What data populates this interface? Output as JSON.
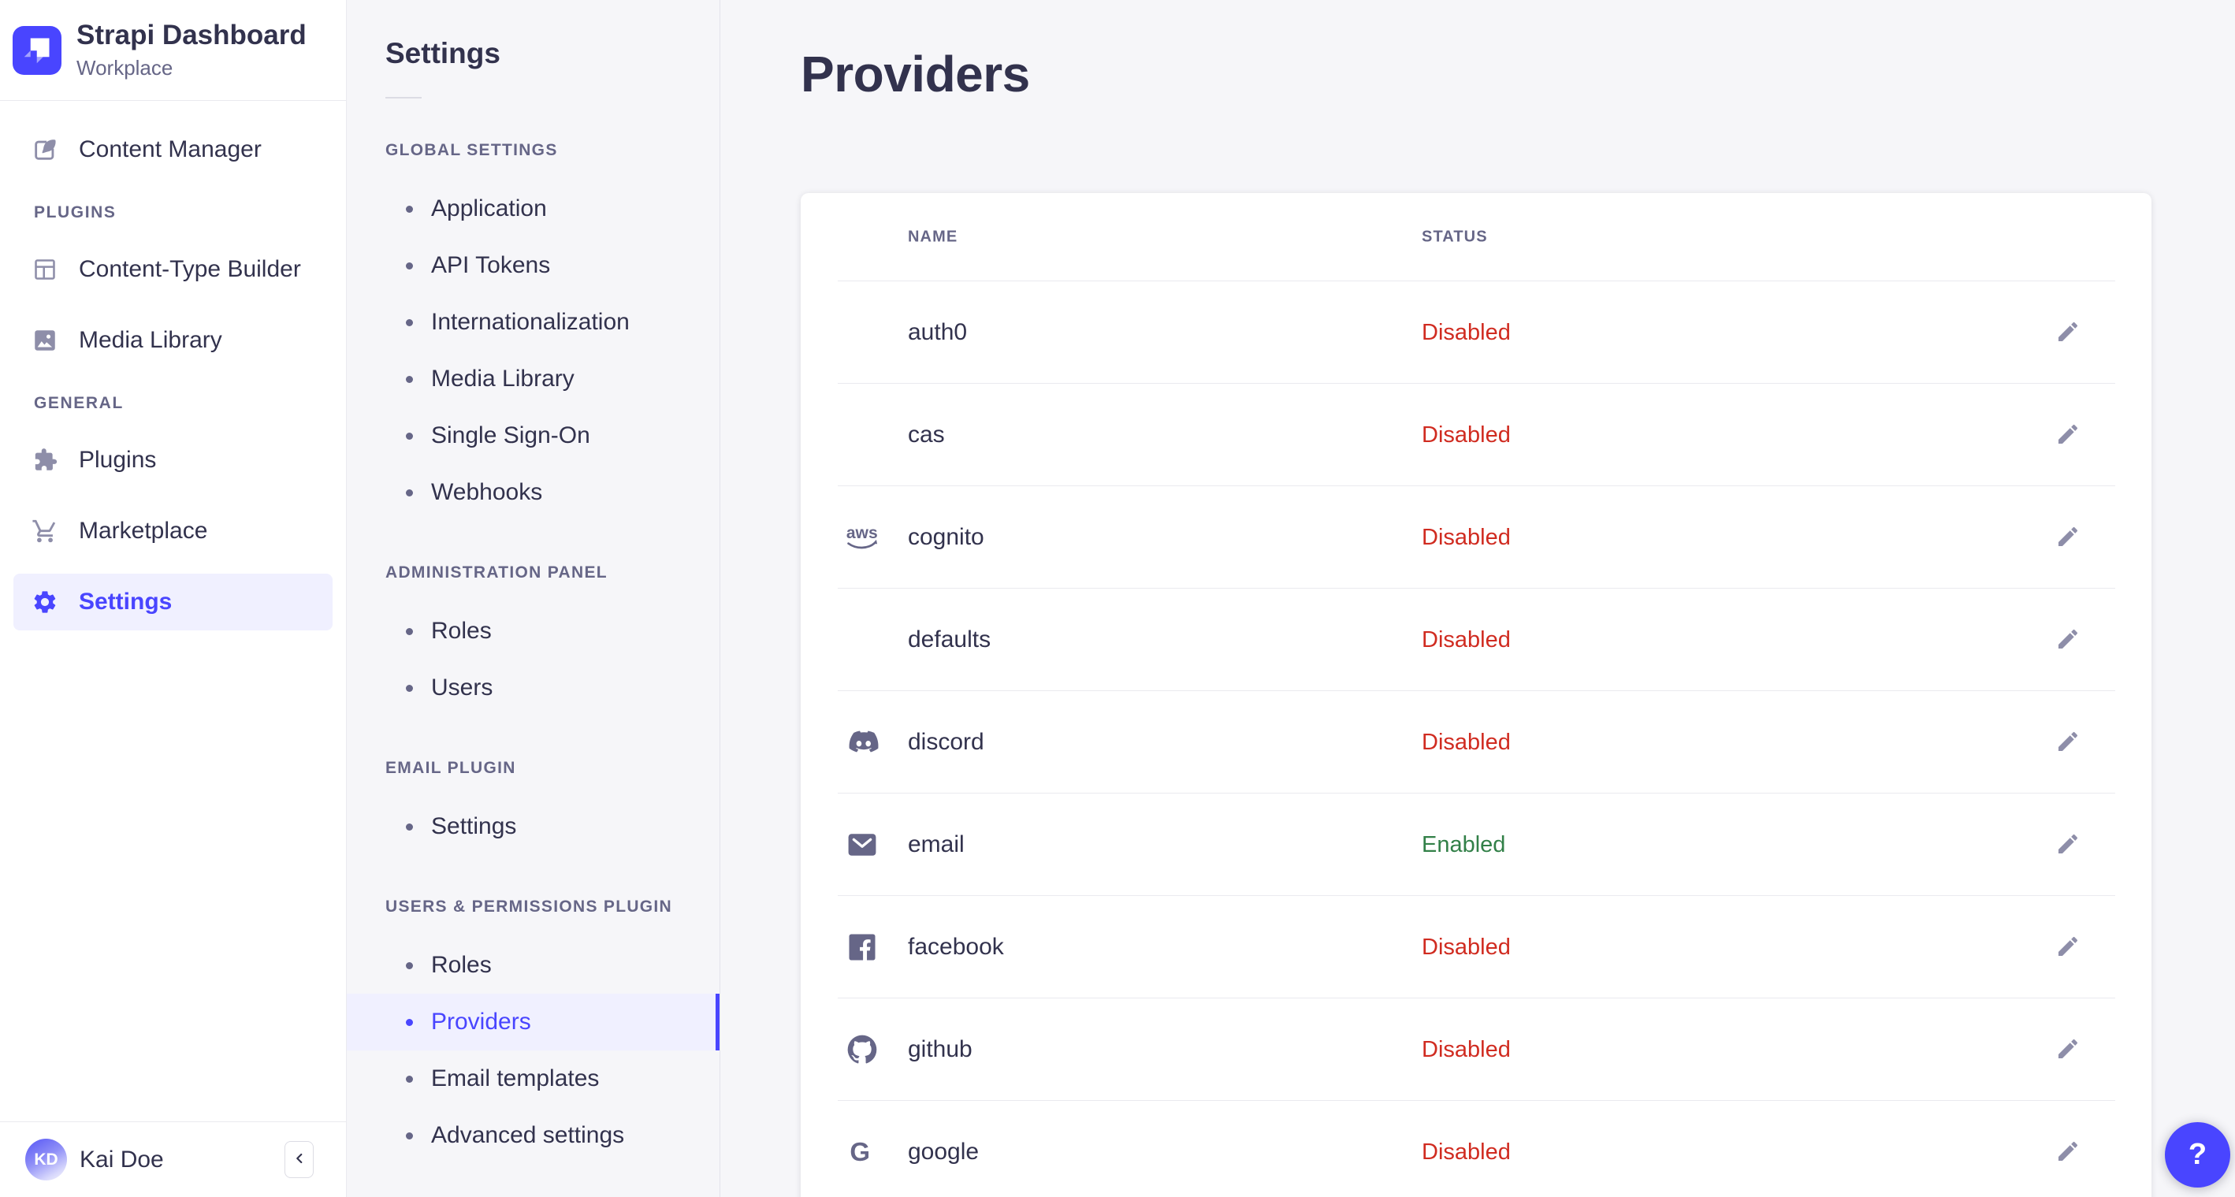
{
  "sidebar": {
    "brand": {
      "title": "Strapi Dashboard",
      "subtitle": "Workplace"
    },
    "groups": [
      {
        "header": "",
        "items": [
          {
            "label": "Content Manager",
            "icon": "feather-pen-icon",
            "active": false
          }
        ]
      },
      {
        "header": "PLUGINS",
        "items": [
          {
            "label": "Content-Type Builder",
            "icon": "layout-icon",
            "active": false
          },
          {
            "label": "Media Library",
            "icon": "image-icon",
            "active": false
          }
        ]
      },
      {
        "header": "GENERAL",
        "items": [
          {
            "label": "Plugins",
            "icon": "puzzle-icon",
            "active": false
          },
          {
            "label": "Marketplace",
            "icon": "cart-icon",
            "active": false
          },
          {
            "label": "Settings",
            "icon": "gear-icon",
            "active": true
          }
        ]
      }
    ],
    "user": {
      "name": "Kai Doe",
      "initials": "KD"
    }
  },
  "subnav": {
    "title": "Settings",
    "sections": [
      {
        "header": "GLOBAL SETTINGS",
        "items": [
          {
            "label": "Application",
            "active": false
          },
          {
            "label": "API Tokens",
            "active": false
          },
          {
            "label": "Internationalization",
            "active": false
          },
          {
            "label": "Media Library",
            "active": false
          },
          {
            "label": "Single Sign-On",
            "active": false
          },
          {
            "label": "Webhooks",
            "active": false
          }
        ]
      },
      {
        "header": "ADMINISTRATION PANEL",
        "items": [
          {
            "label": "Roles",
            "active": false
          },
          {
            "label": "Users",
            "active": false
          }
        ]
      },
      {
        "header": "EMAIL PLUGIN",
        "items": [
          {
            "label": "Settings",
            "active": false
          }
        ]
      },
      {
        "header": "USERS & PERMISSIONS PLUGIN",
        "items": [
          {
            "label": "Roles",
            "active": false
          },
          {
            "label": "Providers",
            "active": true
          },
          {
            "label": "Email templates",
            "active": false
          },
          {
            "label": "Advanced settings",
            "active": false
          }
        ]
      }
    ]
  },
  "main": {
    "title": "Providers",
    "table": {
      "columns": [
        "NAME",
        "STATUS"
      ],
      "rows": [
        {
          "name": "auth0",
          "icon": null,
          "status": "Disabled"
        },
        {
          "name": "cas",
          "icon": null,
          "status": "Disabled"
        },
        {
          "name": "cognito",
          "icon": "aws-icon",
          "status": "Disabled"
        },
        {
          "name": "defaults",
          "icon": null,
          "status": "Disabled"
        },
        {
          "name": "discord",
          "icon": "discord-icon",
          "status": "Disabled"
        },
        {
          "name": "email",
          "icon": "envelope-icon",
          "status": "Enabled"
        },
        {
          "name": "facebook",
          "icon": "facebook-icon",
          "status": "Disabled"
        },
        {
          "name": "github",
          "icon": "github-icon",
          "status": "Disabled"
        },
        {
          "name": "google",
          "icon": "google-icon",
          "status": "Disabled"
        }
      ]
    }
  },
  "help": {
    "label": "?"
  },
  "colors": {
    "primary": "#4945FF",
    "primary_light_bg": "#F0F0FF",
    "danger": "#D02B20",
    "success": "#328048",
    "text": "#32324D",
    "muted": "#666687",
    "icon_gray": "#8E8EA9",
    "border": "#EAEAEF",
    "app_bg": "#F6F6F9",
    "surface": "#FFFFFF"
  }
}
